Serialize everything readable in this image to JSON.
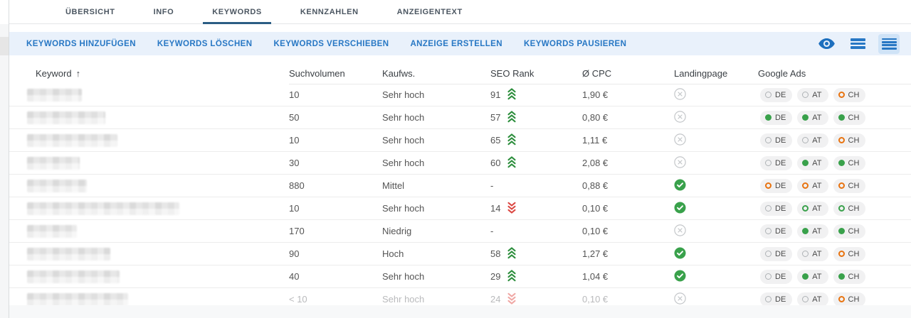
{
  "tabs": {
    "active": "KEYWORDS",
    "items": [
      "ÜBERSICHT",
      "INFO",
      "KEYWORDS",
      "KENNZAHLEN",
      "ANZEIGENTEXT"
    ]
  },
  "toolbar": {
    "buttons": [
      "KEYWORDS HINZUFÜGEN",
      "KEYWORDS LÖSCHEN",
      "KEYWORDS VERSCHIEBEN",
      "ANZEIGE ERSTELLEN",
      "KEYWORDS PAUSIEREN"
    ],
    "view_icons": [
      "eye-icon",
      "list-rows-icon",
      "list-rows-dense-icon"
    ],
    "selected_view": "list-rows-dense"
  },
  "table": {
    "columns": [
      "Keyword",
      "Suchvolumen",
      "Kaufws.",
      "SEO Rank",
      "Ø CPC",
      "Landingpage",
      "Google Ads"
    ],
    "sort": {
      "column": "Keyword",
      "direction": "asc",
      "arrow": "↑"
    },
    "countries": [
      "DE",
      "AT",
      "CH"
    ],
    "rows": [
      {
        "keyword": "[redacted]",
        "blur_width": 77,
        "suchvolumen": "10",
        "kaufws": "Sehr hoch",
        "seo_rank": "91",
        "seo_trend": "up",
        "cpc": "1,90 €",
        "landingpage": "cross",
        "google_ads": [
          "gray-ring",
          "gray-ring",
          "orange-ring"
        ],
        "muted": false
      },
      {
        "keyword": "[redacted]",
        "blur_width": 110,
        "suchvolumen": "50",
        "kaufws": "Sehr hoch",
        "seo_rank": "57",
        "seo_trend": "up",
        "cpc": "0,80 €",
        "landingpage": "cross",
        "google_ads": [
          "green-dot",
          "green-dot",
          "green-dot"
        ],
        "muted": false
      },
      {
        "keyword": "[redacted]",
        "blur_width": 127,
        "suchvolumen": "10",
        "kaufws": "Sehr hoch",
        "seo_rank": "65",
        "seo_trend": "up",
        "cpc": "1,11 €",
        "landingpage": "cross",
        "google_ads": [
          "gray-ring",
          "gray-ring",
          "orange-ring"
        ],
        "muted": false
      },
      {
        "keyword": "[redacted]",
        "blur_width": 74,
        "suchvolumen": "30",
        "kaufws": "Sehr hoch",
        "seo_rank": "60",
        "seo_trend": "up",
        "cpc": "2,08 €",
        "landingpage": "cross",
        "google_ads": [
          "gray-ring",
          "green-dot",
          "green-dot"
        ],
        "muted": false
      },
      {
        "keyword": "[redacted]",
        "blur_width": 84,
        "suchvolumen": "880",
        "kaufws": "Mittel",
        "seo_rank": "-",
        "seo_trend": "none",
        "cpc": "0,88 €",
        "landingpage": "check",
        "google_ads": [
          "orange-ring",
          "orange-ring",
          "orange-ring"
        ],
        "muted": false
      },
      {
        "keyword": "[redacted]",
        "blur_width": 214,
        "suchvolumen": "10",
        "kaufws": "Sehr hoch",
        "seo_rank": "14",
        "seo_trend": "down",
        "cpc": "0,10 €",
        "landingpage": "check",
        "google_ads": [
          "gray-ring",
          "green-ring",
          "green-ring"
        ],
        "muted": false
      },
      {
        "keyword": "[redacted]",
        "blur_width": 70,
        "suchvolumen": "170",
        "kaufws": "Niedrig",
        "seo_rank": "-",
        "seo_trend": "none",
        "cpc": "0,10 €",
        "landingpage": "cross",
        "google_ads": [
          "gray-ring",
          "green-dot",
          "green-dot"
        ],
        "muted": false
      },
      {
        "keyword": "[redacted]",
        "blur_width": 117,
        "suchvolumen": "90",
        "kaufws": "Hoch",
        "seo_rank": "58",
        "seo_trend": "up",
        "cpc": "1,27 €",
        "landingpage": "check",
        "google_ads": [
          "gray-ring",
          "gray-ring",
          "orange-ring"
        ],
        "muted": false
      },
      {
        "keyword": "[redacted]",
        "blur_width": 130,
        "suchvolumen": "40",
        "kaufws": "Sehr hoch",
        "seo_rank": "29",
        "seo_trend": "up",
        "cpc": "1,04 €",
        "landingpage": "check",
        "google_ads": [
          "gray-ring",
          "green-dot",
          "green-dot"
        ],
        "muted": false
      },
      {
        "keyword": "[redacted]",
        "blur_width": 142,
        "suchvolumen": "< 10",
        "kaufws": "Sehr hoch",
        "seo_rank": "24",
        "seo_trend": "down",
        "cpc": "0,10 €",
        "landingpage": "cross",
        "google_ads": [
          "gray-ring",
          "gray-ring",
          "orange-ring"
        ],
        "muted": true
      }
    ]
  },
  "colors": {
    "accent_blue": "#2777c4",
    "active_tab_underline": "#2b5d84",
    "toolbar_bg": "#e9f1fb",
    "selected_icon_bg": "#cfe3f7",
    "green": "#39a14b",
    "green_chevron": "#2e8f3e",
    "red_chevron": "#dc4a45",
    "red_chevron_muted": "#f0a9a6",
    "orange": "#e8730f",
    "gray_icon": "#c3c6c9",
    "pill_bg": "#f1f1f2"
  }
}
